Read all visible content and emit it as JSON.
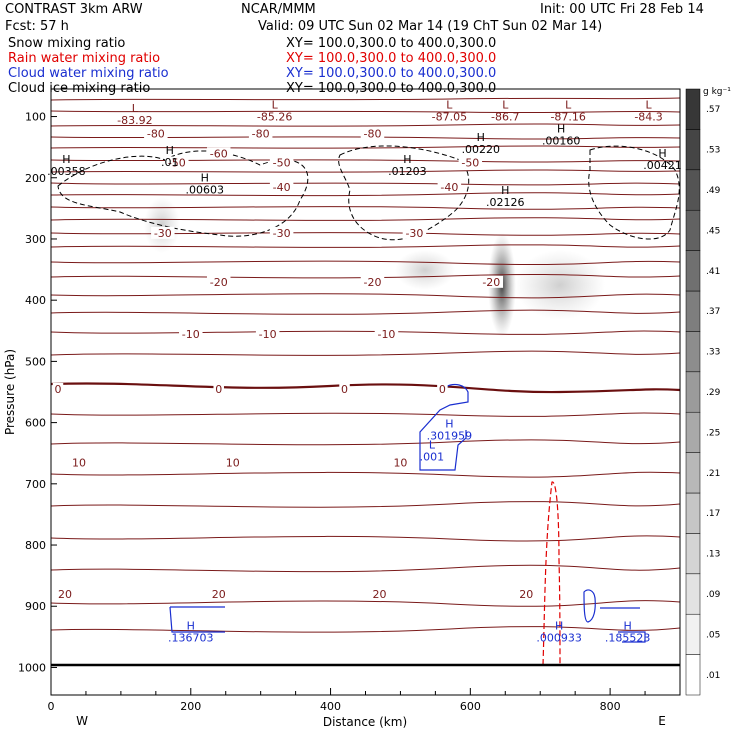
{
  "header": {
    "model": "CONTRAST  3km ARW",
    "agency": "NCAR/MMM",
    "init": "Init: 00 UTC Fri 28 Feb 14",
    "fcst": "Fcst:   57 h",
    "valid": "Valid: 09 UTC Sun 02 Mar 14 (19 ChT Sun 02 Mar 14)"
  },
  "fields": [
    {
      "name": "Snow mixing ratio",
      "xy": "XY= 100.0,300.0 to 400.0,300.0",
      "color": "#000000"
    },
    {
      "name": "Rain water mixing ratio",
      "xy": "XY= 100.0,300.0 to 400.0,300.0",
      "color": "#e00000"
    },
    {
      "name": "Cloud water mixing ratio",
      "xy": "XY= 100.0,300.0 to 400.0,300.0",
      "color": "#1a2fd0"
    },
    {
      "name": "Cloud ice mixing ratio",
      "xy": "XY= 100.0,300.0 to 400.0,300.0",
      "color": "#000000"
    }
  ],
  "colorbar": {
    "unit": "g kg⁻¹",
    "labels": [
      ".01",
      ".05",
      ".09",
      ".13",
      ".17",
      ".21",
      ".25",
      ".29",
      ".33",
      ".37",
      ".41",
      ".45",
      ".49",
      ".53",
      ".57"
    ]
  },
  "chart_data": {
    "type": "cross-section",
    "xlabel": "Distance (km)",
    "ylabel": "Pressure (hPa)",
    "xlim": [
      0,
      900
    ],
    "ylim": [
      1045,
      55
    ],
    "x_ticks": [
      0,
      200,
      400,
      600,
      800
    ],
    "x_tick_labels": [
      "0",
      "200",
      "400",
      "600",
      "800"
    ],
    "y_ticks": [
      100,
      200,
      300,
      400,
      500,
      600,
      700,
      800,
      900,
      1000
    ],
    "y_tick_labels": [
      "100",
      "200",
      "300",
      "400",
      "500",
      "600",
      "700",
      "800",
      "900",
      "1000"
    ],
    "west_label": "W",
    "east_label": "E",
    "temperature_contours": [
      {
        "value": -80,
        "label": "-80",
        "p": 128
      },
      {
        "value": -60,
        "label": "-60",
        "p": 160
      },
      {
        "value": -50,
        "label": "-50",
        "p": 175
      },
      {
        "value": -40,
        "label": "-40",
        "p": 215
      },
      {
        "value": -30,
        "label": "-30",
        "p": 290
      },
      {
        "value": -20,
        "label": "-20",
        "p": 370
      },
      {
        "value": -10,
        "label": "-10",
        "p": 455
      },
      {
        "value": 0,
        "label": "0",
        "p": 545
      },
      {
        "value": 10,
        "label": "10",
        "p": 665
      },
      {
        "value": 20,
        "label": "20",
        "p": 880
      }
    ],
    "snow_max_markers": [
      {
        "x_km": 140,
        "p": 320
      },
      {
        "x_km": 645,
        "p": 365
      }
    ],
    "extrema_labels": [
      {
        "type": "L",
        "value": "-83.92",
        "x_km": 120,
        "p": 102,
        "color": "#7a1a1a"
      },
      {
        "type": "L",
        "value": "-85.26",
        "x_km": 320,
        "p": 97,
        "color": "#7a1a1a"
      },
      {
        "type": "L",
        "value": "-87.05",
        "x_km": 570,
        "p": 97,
        "color": "#7a1a1a"
      },
      {
        "type": "L",
        "value": "-86.7",
        "x_km": 650,
        "p": 97,
        "color": "#7a1a1a"
      },
      {
        "type": "L",
        "value": "-87.16",
        "x_km": 740,
        "p": 97,
        "color": "#7a1a1a"
      },
      {
        "type": "L",
        "value": "-84.3",
        "x_km": 855,
        "p": 97,
        "color": "#7a1a1a"
      },
      {
        "type": "H",
        "value": ".00358",
        "x_km": 22,
        "p": 186,
        "color": "#000000"
      },
      {
        "type": "H",
        "value": ".01",
        "x_km": 170,
        "p": 171,
        "color": "#000000"
      },
      {
        "type": "H",
        "value": ".00603",
        "x_km": 220,
        "p": 216,
        "color": "#000000"
      },
      {
        "type": "H",
        "value": ".01203",
        "x_km": 510,
        "p": 186,
        "color": "#000000"
      },
      {
        "type": "H",
        "value": ".00220",
        "x_km": 615,
        "p": 150,
        "color": "#000000"
      },
      {
        "type": "H",
        "value": ".00160",
        "x_km": 730,
        "p": 136,
        "color": "#000000"
      },
      {
        "type": "H",
        "value": ".00421",
        "x_km": 875,
        "p": 176,
        "color": "#000000"
      },
      {
        "type": "H",
        "value": ".02126",
        "x_km": 650,
        "p": 236,
        "color": "#000000"
      },
      {
        "type": "H",
        "value": ".301959",
        "x_km": 570,
        "p": 618,
        "color": "#1a2fd0"
      },
      {
        "type": "L",
        "value": ".001",
        "x_km": 545,
        "p": 652,
        "color": "#1a2fd0"
      },
      {
        "type": "H",
        "value": ".136703",
        "x_km": 200,
        "p": 948,
        "color": "#1a2fd0"
      },
      {
        "type": "H",
        "value": ".000933",
        "x_km": 727,
        "p": 948,
        "color": "#1a2fd0"
      },
      {
        "type": "H",
        "value": ".185523",
        "x_km": 825,
        "p": 948,
        "color": "#1a2fd0"
      }
    ]
  }
}
